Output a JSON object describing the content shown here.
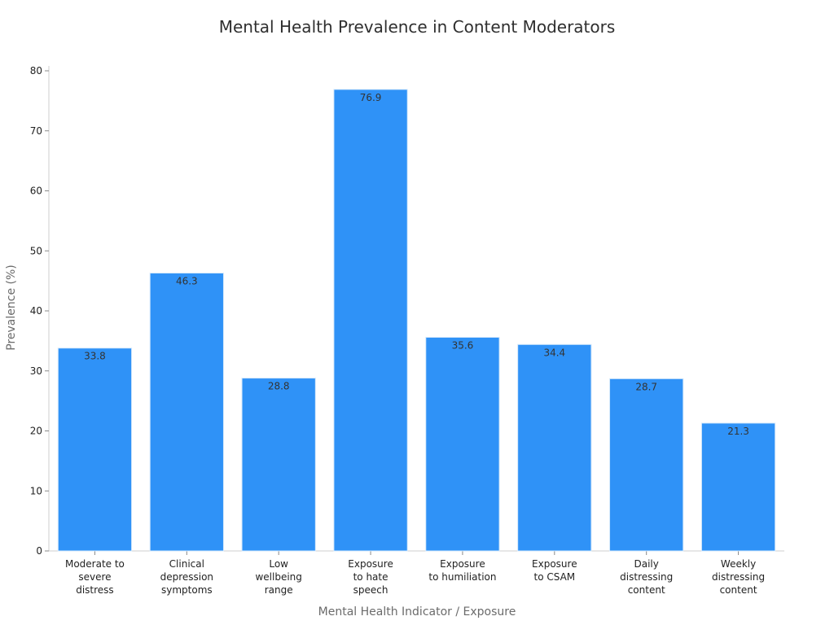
{
  "chart_data": {
    "type": "bar",
    "title": "Mental Health Prevalence in Content Moderators",
    "xlabel": "Mental Health Indicator / Exposure",
    "ylabel": "Prevalence (%)",
    "ylim": [
      0,
      80
    ],
    "yticks": [
      0,
      10,
      20,
      30,
      40,
      50,
      60,
      70,
      80
    ],
    "grid": false,
    "categories": [
      [
        "Moderate to",
        "severe",
        "distress"
      ],
      [
        "Clinical",
        "depression",
        "symptoms"
      ],
      [
        "Low",
        "wellbeing",
        "range"
      ],
      [
        "Exposure",
        "to hate",
        "speech"
      ],
      [
        "Exposure",
        "to humiliation"
      ],
      [
        "Exposure",
        "to CSAM"
      ],
      [
        "Daily",
        "distressing",
        "content"
      ],
      [
        "Weekly",
        "distressing",
        "content"
      ]
    ],
    "values": [
      33.8,
      46.3,
      28.8,
      76.9,
      35.6,
      34.4,
      28.7,
      21.3
    ],
    "bar_color": "#2f92f7",
    "bar_edge_color": "#d6e9fb"
  }
}
